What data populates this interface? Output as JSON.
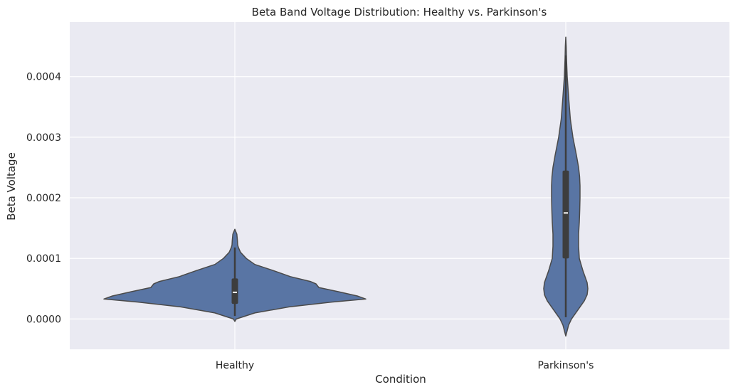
{
  "chart_data": {
    "type": "violin",
    "title": "Beta Band Voltage Distribution: Healthy vs. Parkinson's",
    "xlabel": "Condition",
    "ylabel": "Beta Voltage",
    "categories": [
      "Healthy",
      "Parkinson's"
    ],
    "ylim": [
      -5e-05,
      0.00049
    ],
    "yticks": [
      0.0,
      0.0001,
      0.0002,
      0.0003,
      0.0004
    ],
    "ytick_labels": [
      "0.0000",
      "0.0001",
      "0.0002",
      "0.0003",
      "0.0004"
    ],
    "grid": true,
    "colors": {
      "plot_background": "#eaeaf2",
      "grid": "#ffffff",
      "violin_fill": "#5975a4",
      "violin_edge": "#4a4a4a",
      "box": "#3d3d3d",
      "median": "#ffffff"
    },
    "violins": [
      {
        "category": "Healthy",
        "whisker_low": 5e-06,
        "q1": 2.5e-05,
        "median": 4.4e-05,
        "q3": 6.7e-05,
        "whisker_high": 0.000118,
        "profile": [
          [
            -4e-06,
            0.0
          ],
          [
            0.0,
            0.01
          ],
          [
            1e-05,
            0.14
          ],
          [
            2e-05,
            0.38
          ],
          [
            2.8e-05,
            0.68
          ],
          [
            3.3e-05,
            0.92
          ],
          [
            3.8e-05,
            0.86
          ],
          [
            4.5e-05,
            0.73
          ],
          [
            5.2e-05,
            0.59
          ],
          [
            5.8e-05,
            0.57
          ],
          [
            6.2e-05,
            0.53
          ],
          [
            7e-05,
            0.39
          ],
          [
            8e-05,
            0.27
          ],
          [
            9e-05,
            0.14
          ],
          [
            0.0001,
            0.08
          ],
          [
            0.00011,
            0.04
          ],
          [
            0.000118,
            0.025
          ],
          [
            0.000122,
            0.02
          ],
          [
            0.00013,
            0.018
          ],
          [
            0.00014,
            0.014
          ],
          [
            0.000148,
            0.0
          ]
        ]
      },
      {
        "category": "Parkinson's",
        "whisker_low": 3e-06,
        "q1": 0.0001,
        "median": 0.000175,
        "q3": 0.000245,
        "whisker_high": 0.000435,
        "profile": [
          [
            -2.8e-05,
            0.0
          ],
          [
            -1e-05,
            0.02
          ],
          [
            0.0,
            0.04
          ],
          [
            1e-05,
            0.07
          ],
          [
            2e-05,
            0.1
          ],
          [
            3e-05,
            0.13
          ],
          [
            4e-05,
            0.15
          ],
          [
            5e-05,
            0.155
          ],
          [
            6e-05,
            0.15
          ],
          [
            7e-05,
            0.135
          ],
          [
            8e-05,
            0.12
          ],
          [
            0.0001,
            0.095
          ],
          [
            0.00012,
            0.09
          ],
          [
            0.00014,
            0.09
          ],
          [
            0.00016,
            0.095
          ],
          [
            0.00018,
            0.098
          ],
          [
            0.0002,
            0.1
          ],
          [
            0.00022,
            0.1
          ],
          [
            0.000235,
            0.097
          ],
          [
            0.00025,
            0.09
          ],
          [
            0.00027,
            0.075
          ],
          [
            0.0003,
            0.05
          ],
          [
            0.00033,
            0.032
          ],
          [
            0.00036,
            0.022
          ],
          [
            0.0004,
            0.01
          ],
          [
            0.00043,
            0.005
          ],
          [
            0.00045,
            0.003
          ],
          [
            0.000465,
            0.0
          ]
        ]
      }
    ]
  }
}
